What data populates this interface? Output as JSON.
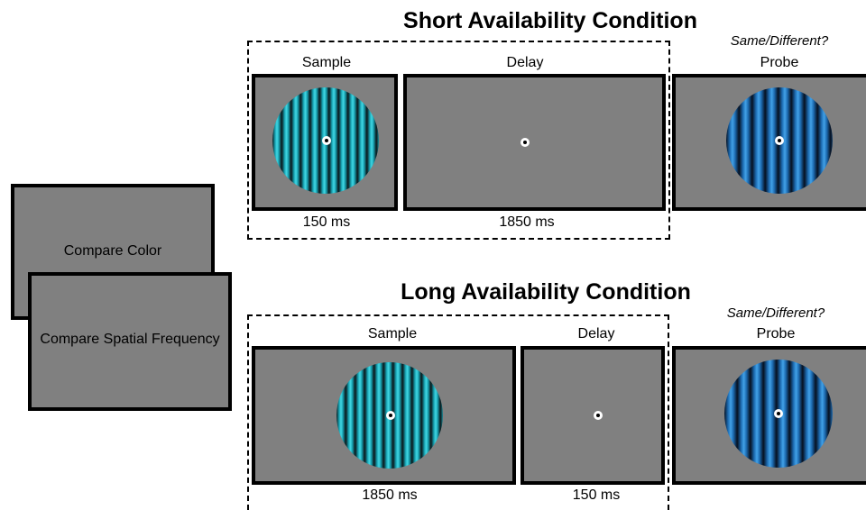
{
  "cues": {
    "back": "Compare Color",
    "front": "Compare Spatial Frequency"
  },
  "short_condition": {
    "title": "Short Availability Condition",
    "response_prompt": "Same/Different?",
    "sample_label": "Sample",
    "delay_label": "Delay",
    "probe_label": "Probe",
    "sample_duration": "150 ms",
    "delay_duration": "1850 ms"
  },
  "long_condition": {
    "title": "Long Availability Condition",
    "response_prompt": "Same/Different?",
    "sample_label": "Sample",
    "delay_label": "Delay",
    "probe_label": "Probe",
    "sample_duration": "1850 ms",
    "delay_duration": "150 ms"
  },
  "colors": {
    "screen_gray": "#808080",
    "sample_grating": "teal",
    "probe_grating": "blue"
  }
}
